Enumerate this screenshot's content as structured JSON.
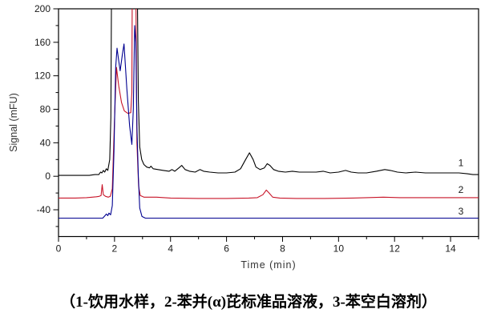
{
  "figure": {
    "y_axis_title": "Signal (mFU)",
    "x_axis_title": "Time (min)",
    "caption": "（1-饮用水样，2-苯并(α)芘标准品溶液，3-苯空白溶剂）"
  },
  "chart_data": {
    "type": "line",
    "title": "",
    "xlabel": "Time (min)",
    "ylabel": "Signal (mFU)",
    "xlim": [
      0,
      15
    ],
    "ylim": [
      -72,
      200
    ],
    "grid": false,
    "frame": true,
    "x_major_ticks": [
      0,
      2,
      4,
      6,
      8,
      10,
      12,
      14
    ],
    "x_minor_ticks": [
      1,
      3,
      5,
      7,
      9,
      11,
      13,
      15
    ],
    "y_major_ticks": [
      -40,
      0,
      40,
      80,
      120,
      160,
      200
    ],
    "y_minor_ticks": [
      -60,
      -20,
      20,
      60,
      100,
      140,
      180
    ],
    "axis_color": "#000000",
    "offscale_clip_value": 280,
    "trace_labels": [
      {
        "text": "1",
        "t": 14.37,
        "v": 16
      },
      {
        "text": "2",
        "t": 14.37,
        "v": -16
      },
      {
        "text": "3",
        "t": 14.37,
        "v": -42
      }
    ],
    "series": [
      {
        "name": "1",
        "description": "饮用水样",
        "color": "#000000",
        "baseline": 0,
        "points": [
          [
            0,
            1
          ],
          [
            0.7,
            1
          ],
          [
            1.1,
            1
          ],
          [
            1.3,
            2
          ],
          [
            1.44,
            2
          ],
          [
            1.5,
            5
          ],
          [
            1.55,
            4
          ],
          [
            1.6,
            7
          ],
          [
            1.65,
            5
          ],
          [
            1.71,
            9
          ],
          [
            1.76,
            7
          ],
          [
            1.83,
            20
          ],
          [
            1.87,
            70
          ],
          [
            1.9,
            280
          ],
          [
            2.8,
            280
          ],
          [
            2.85,
            90
          ],
          [
            2.9,
            35
          ],
          [
            2.97,
            20
          ],
          [
            3.05,
            14
          ],
          [
            3.15,
            11
          ],
          [
            3.25,
            10
          ],
          [
            3.3,
            12
          ],
          [
            3.38,
            9
          ],
          [
            3.55,
            8
          ],
          [
            3.75,
            7
          ],
          [
            3.95,
            6
          ],
          [
            4.05,
            8
          ],
          [
            4.15,
            6
          ],
          [
            4.3,
            10
          ],
          [
            4.4,
            13
          ],
          [
            4.52,
            8
          ],
          [
            4.68,
            6
          ],
          [
            4.88,
            5
          ],
          [
            5.05,
            8
          ],
          [
            5.18,
            6
          ],
          [
            5.4,
            5
          ],
          [
            5.7,
            4
          ],
          [
            6.0,
            4
          ],
          [
            6.3,
            5
          ],
          [
            6.5,
            9
          ],
          [
            6.68,
            20
          ],
          [
            6.82,
            28
          ],
          [
            6.95,
            20
          ],
          [
            7.05,
            11
          ],
          [
            7.2,
            8
          ],
          [
            7.35,
            10
          ],
          [
            7.45,
            15
          ],
          [
            7.55,
            13
          ],
          [
            7.68,
            8
          ],
          [
            7.85,
            6
          ],
          [
            8.1,
            5
          ],
          [
            8.35,
            6
          ],
          [
            8.6,
            5
          ],
          [
            8.9,
            5
          ],
          [
            9.2,
            5
          ],
          [
            9.45,
            6
          ],
          [
            9.7,
            4
          ],
          [
            10.0,
            5
          ],
          [
            10.25,
            7
          ],
          [
            10.45,
            5
          ],
          [
            10.7,
            4
          ],
          [
            11.0,
            4
          ],
          [
            11.35,
            6
          ],
          [
            11.65,
            8
          ],
          [
            11.85,
            7
          ],
          [
            12.1,
            5
          ],
          [
            12.4,
            4
          ],
          [
            12.75,
            5
          ],
          [
            13.1,
            4
          ],
          [
            13.5,
            4
          ],
          [
            13.9,
            4
          ],
          [
            14.3,
            4
          ],
          [
            14.6,
            3
          ],
          [
            14.8,
            2
          ],
          [
            15,
            2
          ]
        ]
      },
      {
        "name": "2",
        "description": "苯并(α)芘标准品溶液",
        "color": "#c81428",
        "baseline": -26,
        "points": [
          [
            0,
            -26
          ],
          [
            0.6,
            -26
          ],
          [
            1.0,
            -25.5
          ],
          [
            1.2,
            -25
          ],
          [
            1.35,
            -24.5
          ],
          [
            1.45,
            -24
          ],
          [
            1.52,
            -23
          ],
          [
            1.56,
            -10
          ],
          [
            1.6,
            -22
          ],
          [
            1.68,
            -24
          ],
          [
            1.78,
            -25
          ],
          [
            1.85,
            -24
          ],
          [
            1.92,
            -15
          ],
          [
            2.0,
            70
          ],
          [
            2.07,
            130
          ],
          [
            2.15,
            108
          ],
          [
            2.25,
            88
          ],
          [
            2.35,
            78
          ],
          [
            2.48,
            75
          ],
          [
            2.58,
            76
          ],
          [
            2.62,
            100
          ],
          [
            2.64,
            280
          ],
          [
            2.75,
            280
          ],
          [
            2.8,
            40
          ],
          [
            2.86,
            -12
          ],
          [
            2.92,
            -23
          ],
          [
            3.05,
            -25
          ],
          [
            3.5,
            -25
          ],
          [
            4.0,
            -26
          ],
          [
            5.0,
            -26.5
          ],
          [
            6.0,
            -26.5
          ],
          [
            6.8,
            -26
          ],
          [
            7.1,
            -25.5
          ],
          [
            7.3,
            -22
          ],
          [
            7.42,
            -16.5
          ],
          [
            7.52,
            -20
          ],
          [
            7.65,
            -25
          ],
          [
            7.9,
            -26
          ],
          [
            8.5,
            -26.5
          ],
          [
            9.5,
            -26.5
          ],
          [
            10.5,
            -26
          ],
          [
            11.0,
            -25.5
          ],
          [
            11.6,
            -25
          ],
          [
            12.2,
            -25.5
          ],
          [
            13.0,
            -25.5
          ],
          [
            14.0,
            -25.5
          ],
          [
            15,
            -25.5
          ]
        ]
      },
      {
        "name": "3",
        "description": "苯空白溶剂",
        "color": "#000090",
        "baseline": -50,
        "points": [
          [
            0,
            -50
          ],
          [
            0.9,
            -50
          ],
          [
            1.4,
            -50
          ],
          [
            1.58,
            -50
          ],
          [
            1.66,
            -47
          ],
          [
            1.71,
            -45
          ],
          [
            1.76,
            -47
          ],
          [
            1.8,
            -44
          ],
          [
            1.86,
            -46
          ],
          [
            1.92,
            -35
          ],
          [
            1.98,
            30
          ],
          [
            2.04,
            130
          ],
          [
            2.09,
            153
          ],
          [
            2.14,
            140
          ],
          [
            2.2,
            126
          ],
          [
            2.28,
            145
          ],
          [
            2.34,
            158
          ],
          [
            2.44,
            105
          ],
          [
            2.54,
            60
          ],
          [
            2.62,
            38
          ],
          [
            2.67,
            80
          ],
          [
            2.72,
            180
          ],
          [
            2.76,
            160
          ],
          [
            2.8,
            60
          ],
          [
            2.85,
            0
          ],
          [
            2.9,
            -38
          ],
          [
            2.98,
            -48
          ],
          [
            3.1,
            -50
          ],
          [
            3.5,
            -50
          ],
          [
            5,
            -50
          ],
          [
            7,
            -50
          ],
          [
            9,
            -50
          ],
          [
            11,
            -50
          ],
          [
            13,
            -50
          ],
          [
            15,
            -50
          ]
        ]
      }
    ]
  }
}
